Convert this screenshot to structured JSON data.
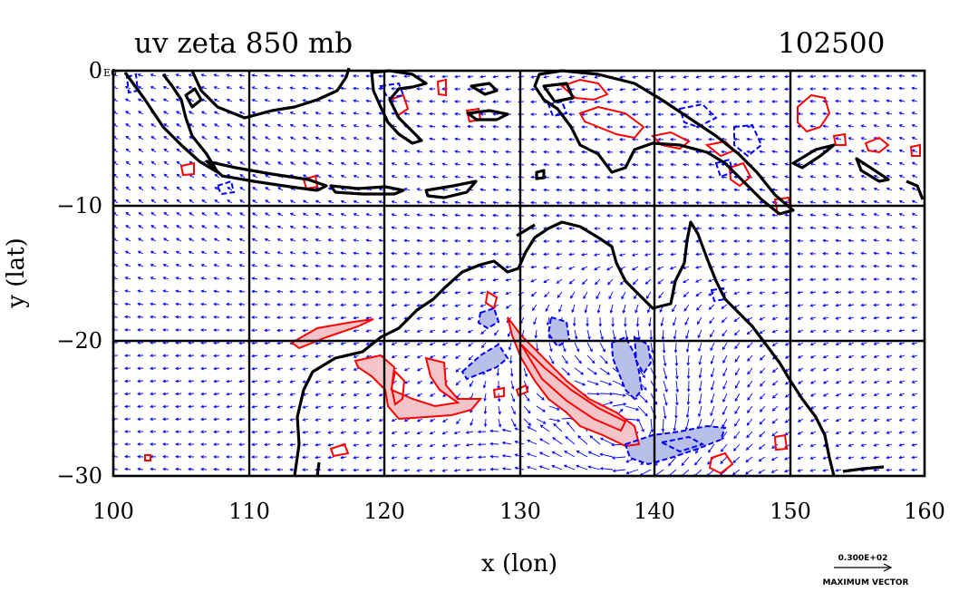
{
  "map": {
    "title_left": "uv zeta 850 mb",
    "title_right": "102500",
    "xlabel": "x (lon)",
    "ylabel": "y (lat)",
    "x_ticks": [
      "100",
      "110",
      "120",
      "130",
      "140",
      "150",
      "160"
    ],
    "y_ticks": [
      "0",
      "−10",
      "−20",
      "−30"
    ],
    "corner_label": "E0",
    "legend": {
      "magnitude": "0.300E+02",
      "label": "MAXIMUM VECTOR"
    },
    "colors": {
      "coast": "#000000",
      "positive": "#ff0000",
      "negative": "#0000ff",
      "positive_fill": "#f3c5c8",
      "negative_fill": "#b8bfe8",
      "vector": "#0000ff"
    }
  },
  "chart_data": {
    "type": "map",
    "xlim": [
      100,
      160
    ],
    "ylim": [
      -30,
      0
    ],
    "grid": true
  }
}
